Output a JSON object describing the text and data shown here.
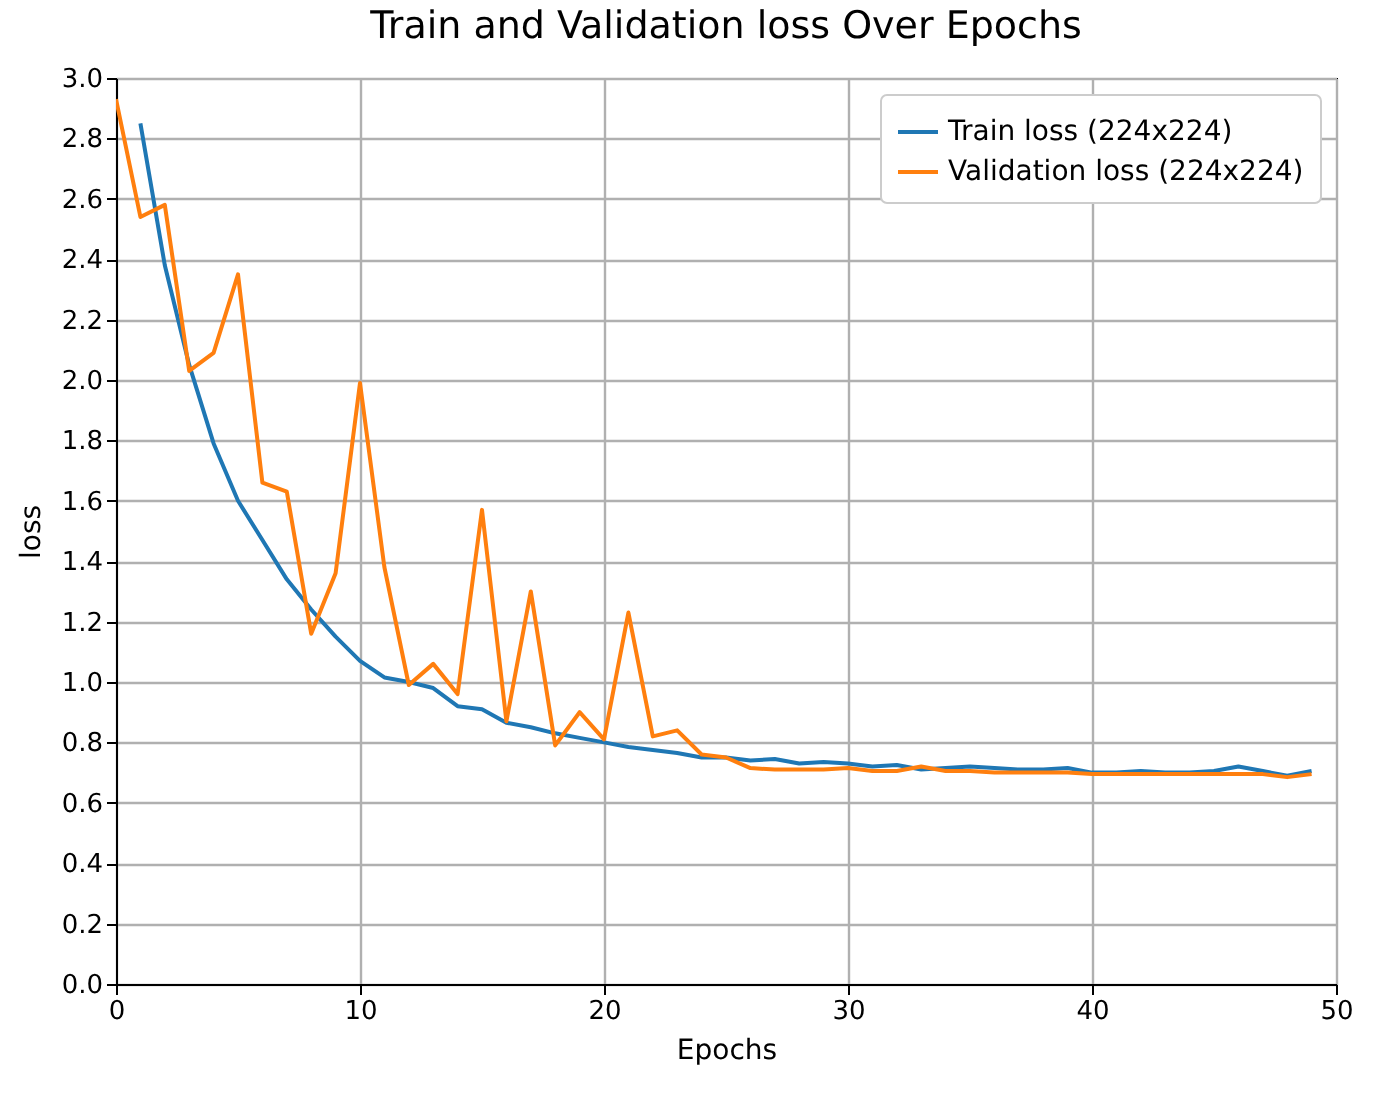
{
  "chart_data": {
    "type": "line",
    "title": "Train and Validation loss Over Epochs",
    "xlabel": "Epochs",
    "ylabel": "loss",
    "x": [
      0,
      1,
      2,
      3,
      4,
      5,
      6,
      7,
      8,
      9,
      10,
      11,
      12,
      13,
      14,
      15,
      16,
      17,
      18,
      19,
      20,
      21,
      22,
      23,
      24,
      25,
      26,
      27,
      28,
      29,
      30,
      31,
      32,
      33,
      34,
      35,
      36,
      37,
      38,
      39,
      40,
      41,
      42,
      43,
      44,
      45,
      46,
      47,
      48,
      49
    ],
    "series": [
      {
        "name": "Train loss (224x224)",
        "color": "#1f77b4",
        "values": [
          null,
          2.85,
          2.38,
          2.05,
          1.79,
          1.6,
          1.47,
          1.34,
          1.24,
          1.15,
          1.07,
          1.015,
          1.0,
          0.98,
          0.92,
          0.91,
          0.865,
          0.85,
          0.83,
          0.815,
          0.8,
          0.785,
          0.775,
          0.765,
          0.75,
          0.75,
          0.74,
          0.745,
          0.73,
          0.735,
          0.73,
          0.72,
          0.725,
          0.71,
          0.715,
          0.72,
          0.715,
          0.71,
          0.71,
          0.715,
          0.7,
          0.7,
          0.705,
          0.7,
          0.7,
          0.705,
          0.72,
          0.705,
          0.69,
          0.705
        ]
      },
      {
        "name": "Validation loss (224x224)",
        "color": "#ff7f0e",
        "values": [
          2.93,
          2.54,
          2.58,
          2.03,
          2.09,
          2.35,
          1.66,
          1.63,
          1.16,
          1.36,
          1.99,
          1.38,
          0.99,
          1.06,
          0.96,
          1.57,
          0.87,
          1.3,
          0.79,
          0.9,
          0.81,
          1.23,
          0.82,
          0.84,
          0.76,
          0.75,
          0.715,
          0.71,
          0.71,
          0.71,
          0.715,
          0.705,
          0.705,
          0.72,
          0.705,
          0.705,
          0.7,
          0.7,
          0.7,
          0.7,
          0.695,
          0.695,
          0.695,
          0.695,
          0.695,
          0.695,
          0.695,
          0.695,
          0.685,
          0.695
        ]
      }
    ],
    "xlim": [
      0,
      50
    ],
    "xticks": [
      0,
      10,
      20,
      30,
      40,
      50
    ],
    "ylim": [
      0,
      3
    ],
    "yticks": [
      {
        "value": 0,
        "label": "0.0"
      },
      0.2,
      0.4,
      0.6,
      0.8,
      {
        "value": 1,
        "label": "1.0"
      },
      1.2,
      1.4,
      1.6,
      1.8,
      {
        "value": 2,
        "label": "2.0"
      },
      2.2,
      2.4,
      2.6,
      2.8,
      {
        "value": 3,
        "label": "3.0"
      }
    ],
    "grid": true,
    "legend": "top right",
    "marker": "none",
    "line_style": "solid"
  }
}
